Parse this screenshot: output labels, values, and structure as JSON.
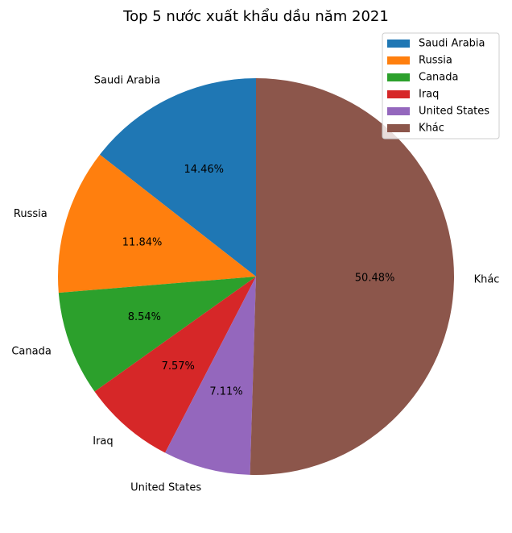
{
  "chart_data": {
    "type": "pie",
    "title": "Top 5 nước xuất khẩu dầu năm 2021",
    "start_angle_deg": 90,
    "direction": "counterclockwise",
    "legend_position": "top-right",
    "slices": [
      {
        "label": "Saudi Arabia",
        "value": 14.46,
        "pct_text": "14.46%",
        "color": "#1f77b4"
      },
      {
        "label": "Russia",
        "value": 11.84,
        "pct_text": "11.84%",
        "color": "#ff7f0e"
      },
      {
        "label": "Canada",
        "value": 8.54,
        "pct_text": "8.54%",
        "color": "#2ca02c"
      },
      {
        "label": "Iraq",
        "value": 7.57,
        "pct_text": "7.57%",
        "color": "#d62728"
      },
      {
        "label": "United States",
        "value": 7.11,
        "pct_text": "7.11%",
        "color": "#9467bd"
      },
      {
        "label": "Khác",
        "value": 50.48,
        "pct_text": "50.48%",
        "color": "#8c564b"
      }
    ]
  }
}
